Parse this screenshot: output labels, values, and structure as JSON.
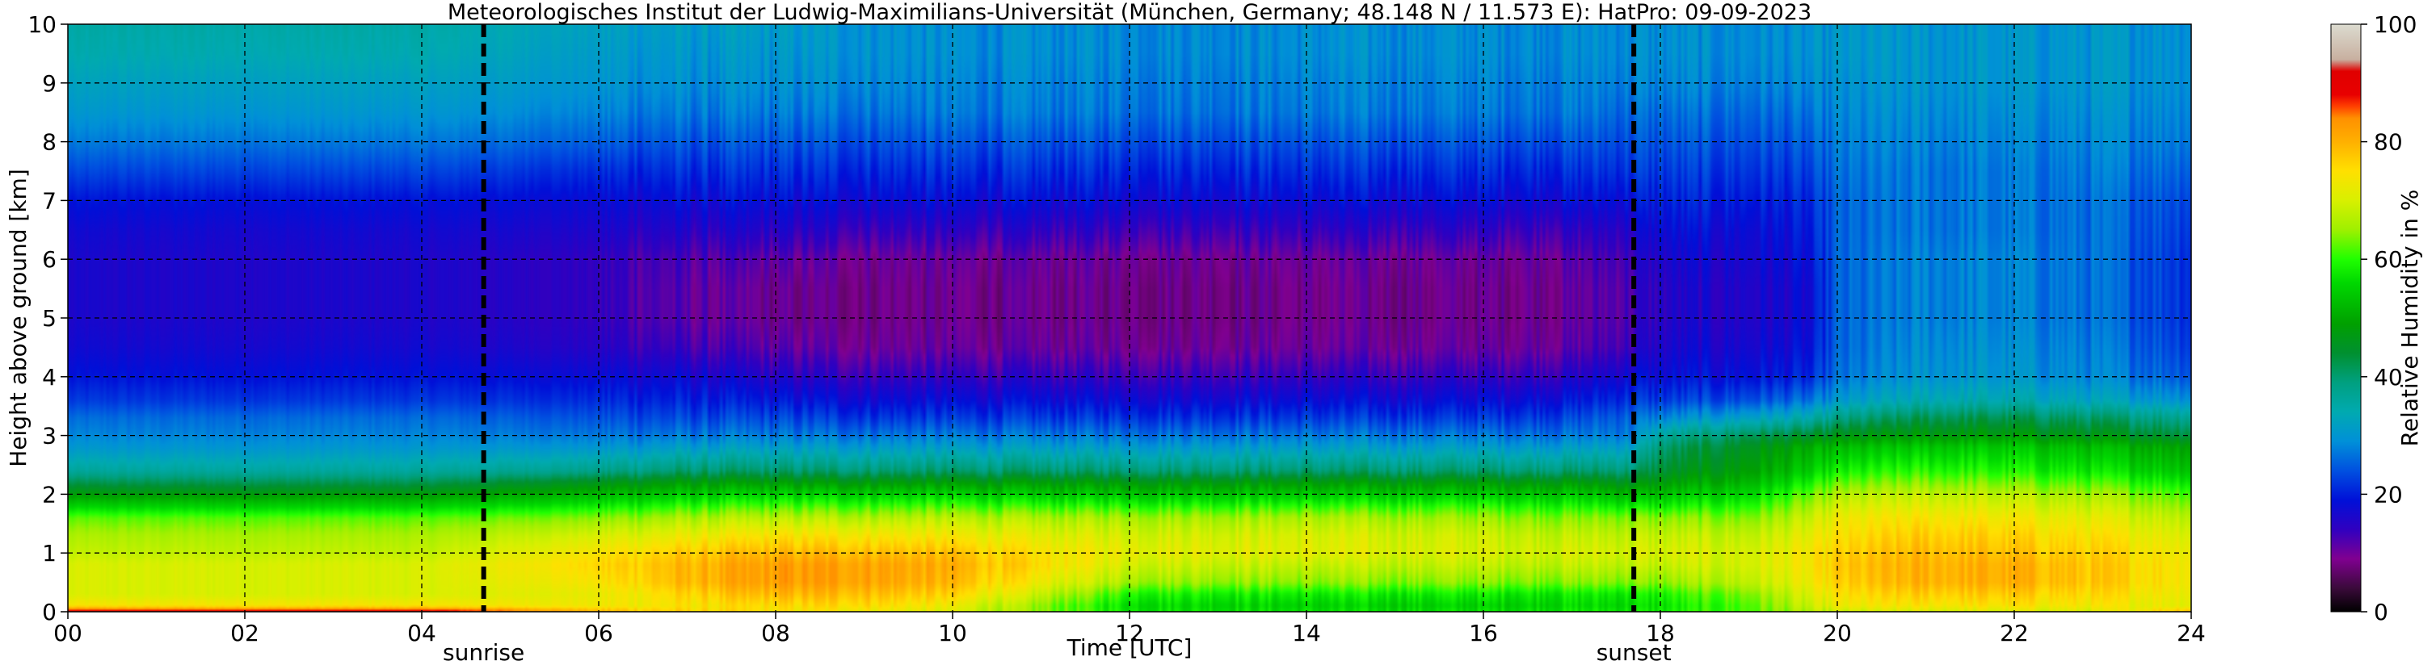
{
  "chart_data": {
    "type": "heatmap",
    "title": "Meteorologisches Institut der Ludwig-Maximilians-Universität (München, Germany; 48.148 N / 11.573 E):    HatPro: 09-09-2023",
    "xlabel": "Time [UTC]",
    "ylabel": "Height above ground [km]",
    "xlim": [
      0,
      24
    ],
    "ylim": [
      0,
      10
    ],
    "x_ticks": [
      "00",
      "02",
      "04",
      "06",
      "08",
      "10",
      "12",
      "14",
      "16",
      "18",
      "20",
      "22",
      "24"
    ],
    "y_ticks": [
      "0",
      "1",
      "2",
      "3",
      "4",
      "5",
      "6",
      "7",
      "8",
      "9",
      "10"
    ],
    "grid": true,
    "colorbar": {
      "label": "Relative Humidity in %",
      "range": [
        0,
        100
      ],
      "ticks": [
        "0",
        "20",
        "40",
        "60",
        "80",
        "100"
      ]
    },
    "annotations": [
      {
        "label": "sunrise",
        "x": 4.7
      },
      {
        "label": "sunset",
        "x": 17.7
      }
    ],
    "humidity_profile_nodes": {
      "time": [
        0,
        2,
        4,
        6,
        7,
        8,
        9,
        10,
        11,
        12,
        14,
        16,
        17,
        17.7,
        18,
        19,
        19.7,
        20,
        21,
        22,
        23,
        24
      ],
      "height_km": [
        0,
        0.1,
        0.3,
        0.5,
        0.8,
        1.0,
        1.3,
        1.6,
        1.8,
        2.0,
        2.2,
        2.4,
        2.8,
        3.0,
        3.3,
        3.6,
        4.0,
        4.5,
        5.0,
        5.5,
        6.0,
        6.5,
        7.0,
        7.5,
        8.0,
        8.5,
        9.0,
        9.5,
        10.0
      ],
      "rh_percent_at_time": [
        [
          92,
          74,
          70,
          70,
          70,
          68,
          66,
          62,
          55,
          48,
          42,
          36,
          30,
          28,
          26,
          22,
          19,
          17,
          16,
          16,
          16,
          17,
          19,
          23,
          27,
          30,
          32,
          34,
          35
        ],
        [
          92,
          74,
          70,
          70,
          70,
          68,
          66,
          62,
          55,
          48,
          42,
          36,
          30,
          28,
          26,
          22,
          19,
          17,
          16,
          16,
          16,
          17,
          19,
          23,
          27,
          30,
          32,
          34,
          35
        ],
        [
          92,
          74,
          70,
          70,
          70,
          68,
          66,
          62,
          55,
          48,
          42,
          36,
          30,
          28,
          26,
          22,
          19,
          17,
          16,
          16,
          16,
          17,
          19,
          23,
          27,
          30,
          32,
          34,
          35
        ],
        [
          80,
          73,
          72,
          74,
          76,
          74,
          70,
          64,
          58,
          52,
          46,
          38,
          30,
          27,
          24,
          21,
          18,
          15,
          14,
          14,
          14,
          16,
          18,
          21,
          25,
          28,
          30,
          31,
          32
        ],
        [
          76,
          74,
          76,
          79,
          79,
          77,
          72,
          66,
          60,
          54,
          48,
          40,
          31,
          27,
          23,
          20,
          17,
          13,
          11,
          11,
          12,
          15,
          18,
          21,
          24,
          27,
          29,
          30,
          31
        ],
        [
          74,
          75,
          79,
          82,
          82,
          79,
          74,
          67,
          61,
          55,
          48,
          40,
          31,
          27,
          23,
          19,
          15,
          11,
          9,
          9,
          11,
          15,
          18,
          21,
          24,
          27,
          29,
          30,
          31
        ],
        [
          73,
          76,
          79,
          82,
          82,
          79,
          74,
          67,
          61,
          55,
          48,
          40,
          31,
          27,
          22,
          18,
          14,
          10,
          9,
          9,
          10,
          14,
          18,
          21,
          24,
          27,
          29,
          30,
          30
        ],
        [
          70,
          72,
          76,
          79,
          80,
          78,
          73,
          67,
          61,
          55,
          48,
          40,
          31,
          27,
          22,
          18,
          14,
          10,
          9,
          9,
          10,
          14,
          18,
          21,
          24,
          27,
          28,
          29,
          29
        ],
        [
          64,
          64,
          68,
          72,
          75,
          74,
          71,
          66,
          60,
          54,
          48,
          40,
          31,
          27,
          22,
          18,
          14,
          10,
          9,
          9,
          10,
          14,
          18,
          21,
          24,
          27,
          28,
          29,
          29
        ],
        [
          58,
          57,
          60,
          66,
          70,
          72,
          70,
          66,
          60,
          54,
          48,
          40,
          31,
          27,
          22,
          18,
          14,
          10,
          9,
          9,
          10,
          14,
          18,
          21,
          24,
          27,
          28,
          29,
          29
        ],
        [
          57,
          55,
          58,
          64,
          68,
          71,
          70,
          66,
          60,
          54,
          48,
          40,
          31,
          27,
          22,
          18,
          14,
          10,
          9,
          9,
          10,
          14,
          18,
          21,
          24,
          27,
          28,
          29,
          29
        ],
        [
          57,
          55,
          58,
          64,
          68,
          70,
          69,
          65,
          60,
          54,
          48,
          40,
          31,
          27,
          22,
          18,
          14,
          10,
          9,
          9,
          10,
          14,
          18,
          21,
          24,
          27,
          28,
          29,
          29
        ],
        [
          58,
          56,
          58,
          64,
          68,
          70,
          68,
          64,
          59,
          54,
          48,
          40,
          31,
          27,
          23,
          19,
          15,
          11,
          10,
          10,
          11,
          14,
          18,
          21,
          24,
          27,
          28,
          29,
          29
        ],
        [
          58,
          56,
          58,
          64,
          68,
          70,
          68,
          64,
          58,
          52,
          46,
          40,
          32,
          28,
          26,
          22,
          18,
          14,
          13,
          13,
          14,
          16,
          19,
          22,
          24,
          26,
          28,
          29,
          29
        ],
        [
          58,
          57,
          59,
          64,
          68,
          70,
          68,
          64,
          58,
          53,
          48,
          44,
          40,
          36,
          28,
          22,
          18,
          16,
          15,
          15,
          16,
          18,
          20,
          22,
          24,
          26,
          28,
          29,
          29
        ],
        [
          62,
          62,
          64,
          68,
          70,
          70,
          68,
          64,
          60,
          56,
          52,
          49,
          46,
          42,
          32,
          24,
          19,
          17,
          16,
          16,
          17,
          18,
          20,
          22,
          24,
          26,
          28,
          29,
          29
        ],
        [
          66,
          68,
          70,
          72,
          73,
          73,
          71,
          68,
          65,
          62,
          58,
          54,
          50,
          44,
          34,
          26,
          20,
          18,
          17,
          17,
          18,
          19,
          20,
          22,
          24,
          26,
          28,
          29,
          29
        ],
        [
          68,
          72,
          74,
          76,
          77,
          76,
          74,
          72,
          69,
          66,
          62,
          58,
          52,
          46,
          38,
          30,
          26,
          25,
          25,
          25,
          25,
          25,
          25,
          26,
          27,
          28,
          29,
          30,
          30
        ],
        [
          70,
          74,
          77,
          80,
          80,
          79,
          77,
          74,
          71,
          68,
          64,
          60,
          54,
          48,
          42,
          34,
          30,
          29,
          28,
          28,
          28,
          27,
          27,
          27,
          28,
          29,
          30,
          30,
          30
        ],
        [
          70,
          74,
          77,
          80,
          80,
          78,
          76,
          73,
          70,
          67,
          63,
          59,
          54,
          48,
          42,
          34,
          30,
          29,
          28,
          28,
          28,
          27,
          27,
          27,
          28,
          29,
          30,
          30,
          30
        ],
        [
          70,
          73,
          75,
          77,
          77,
          76,
          74,
          71,
          68,
          65,
          61,
          57,
          52,
          46,
          40,
          32,
          28,
          27,
          26,
          26,
          26,
          26,
          26,
          27,
          28,
          29,
          30,
          30,
          30
        ],
        [
          80,
          72,
          73,
          74,
          74,
          73,
          71,
          68,
          65,
          62,
          58,
          54,
          50,
          44,
          38,
          30,
          25,
          23,
          22,
          22,
          22,
          23,
          24,
          26,
          28,
          29,
          30,
          30,
          30
        ]
      ]
    }
  }
}
